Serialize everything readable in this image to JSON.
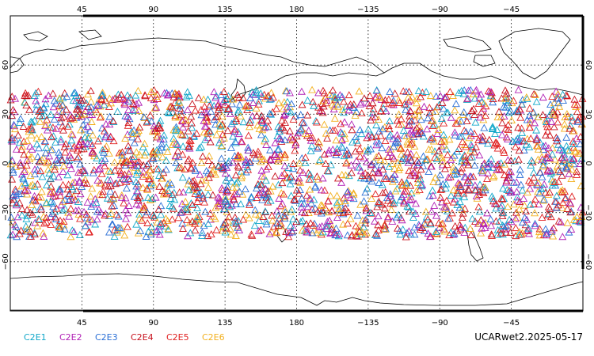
{
  "map": {
    "projection": "cylindrical-equidistant",
    "center_longitude": 180,
    "lon_ticks": [
      "45",
      "90",
      "135",
      "180",
      "−135",
      "−90",
      "−45"
    ],
    "lat_ticks": [
      "60",
      "30",
      "0",
      "−30",
      "−60"
    ],
    "lat_tick_values": [
      60,
      30,
      0,
      -30,
      -60
    ],
    "lon_tick_values": [
      45,
      90,
      135,
      180,
      225,
      270,
      315
    ],
    "grid": "dotted",
    "lat_range": [
      -90,
      90
    ],
    "lon_range": [
      0,
      360
    ]
  },
  "observations": {
    "marker": "open-triangle",
    "lat_band": [
      -45,
      45
    ],
    "density": "very high",
    "series": [
      {
        "name": "C2E1",
        "color": "#11a7c9"
      },
      {
        "name": "C2E2",
        "color": "#b01fb5"
      },
      {
        "name": "C2E3",
        "color": "#2a6fd6"
      },
      {
        "name": "C2E4",
        "color": "#c7101c"
      },
      {
        "name": "C2E5",
        "color": "#e02020"
      },
      {
        "name": "C2E6",
        "color": "#f2b01e"
      }
    ]
  },
  "legend": {
    "items": [
      "C2E1",
      "C2E2",
      "C2E3",
      "C2E4",
      "C2E5",
      "C2E6"
    ],
    "colors": [
      "#11a7c9",
      "#b01fb5",
      "#2a6fd6",
      "#c7101c",
      "#e02020",
      "#f2b01e"
    ]
  },
  "stamp": {
    "text": "UCARwet2.2025-05-17"
  }
}
